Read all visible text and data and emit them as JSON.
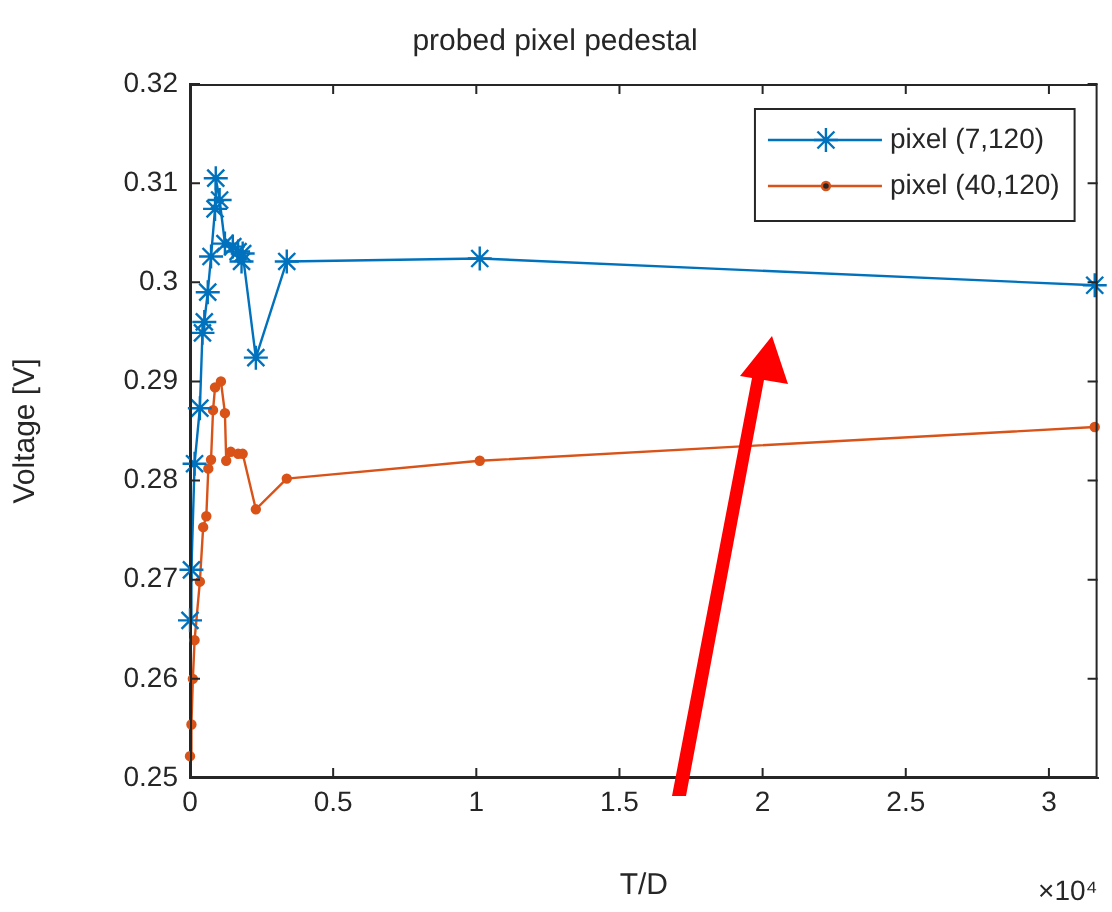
{
  "chart_data": {
    "type": "line",
    "title": "probed pixel pedestal",
    "xlabel": "T/D",
    "ylabel": "Voltage [V]",
    "xlim": [
      0,
      3.17
    ],
    "xticks": [
      0,
      0.5,
      1,
      1.5,
      2,
      2.5,
      3
    ],
    "ylim": [
      0.25,
      0.32
    ],
    "yticks": [
      0.25,
      0.26,
      0.27,
      0.28,
      0.29,
      0.3,
      0.31,
      0.32
    ],
    "grid": false,
    "legend": "top right",
    "line_style": "solid",
    "annotations": [
      "×10⁴"
    ],
    "series": [
      {
        "name": "pixel (7,120)",
        "color": "#0072bd",
        "marker": "cross",
        "x": [
          0,
          0.005,
          0.016,
          0.0345,
          0.0435,
          0.05,
          0.062,
          0.0735,
          0.0875,
          0.09,
          0.1035,
          0.122,
          0.1495,
          0.168,
          0.18,
          0.184,
          0.23,
          0.338,
          1.012,
          3.16
        ],
        "values": [
          0.2659,
          0.271,
          0.2817,
          0.2873,
          0.2949,
          0.296,
          0.299,
          0.3026,
          0.3074,
          0.3105,
          0.3083,
          0.3039,
          0.3036,
          0.3031,
          0.3021,
          0.3029,
          0.2924,
          0.3021,
          0.3024,
          0.2997
        ]
      },
      {
        "name": "pixel (40,120)",
        "color": "#d95319",
        "marker": "circle",
        "x": [
          0,
          0.005,
          0.01,
          0.016,
          0.0345,
          0.046,
          0.057,
          0.064,
          0.0735,
          0.0805,
          0.0875,
          0.108,
          0.122,
          0.1265,
          0.1425,
          0.168,
          0.184,
          0.23,
          0.338,
          1.012,
          3.16
        ],
        "values": [
          0.2522,
          0.2554,
          0.26,
          0.2639,
          0.2698,
          0.2753,
          0.2764,
          0.2812,
          0.2821,
          0.2871,
          0.2894,
          0.29,
          0.2868,
          0.282,
          0.2829,
          0.2827,
          0.2827,
          0.2771,
          0.2802,
          0.282,
          0.2854
        ]
      }
    ]
  }
}
